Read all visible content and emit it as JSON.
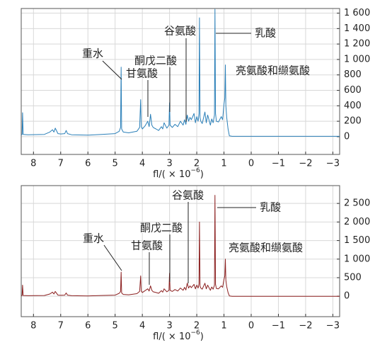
{
  "chart_data": [
    {
      "type": "line",
      "color": "#2a7fb8",
      "x": [
        8.45,
        8.42,
        8.4,
        8.38,
        8.2,
        7.6,
        7.4,
        7.3,
        7.25,
        7.2,
        7.1,
        7.0,
        6.85,
        6.8,
        6.75,
        6.6,
        6.0,
        5.5,
        5.0,
        4.85,
        4.8,
        4.78,
        4.76,
        4.7,
        4.5,
        4.2,
        4.1,
        4.06,
        4.04,
        4.0,
        3.9,
        3.8,
        3.75,
        3.7,
        3.65,
        3.6,
        3.5,
        3.4,
        3.3,
        3.25,
        3.2,
        3.1,
        3.02,
        3.0,
        2.98,
        2.9,
        2.8,
        2.7,
        2.6,
        2.5,
        2.45,
        2.4,
        2.35,
        2.3,
        2.25,
        2.2,
        2.1,
        2.05,
        2.0,
        1.95,
        1.92,
        1.9,
        1.88,
        1.85,
        1.8,
        1.7,
        1.65,
        1.6,
        1.5,
        1.45,
        1.4,
        1.35,
        1.33,
        1.31,
        1.28,
        1.2,
        1.1,
        1.05,
        1.0,
        0.97,
        0.95,
        0.93,
        0.9,
        0.85,
        0.8,
        0.7,
        0.5,
        0,
        -1,
        -2,
        -3.25
      ],
      "values": [
        20,
        30,
        310,
        30,
        25,
        30,
        60,
        90,
        60,
        110,
        40,
        35,
        40,
        80,
        40,
        25,
        20,
        30,
        40,
        70,
        120,
        900,
        100,
        60,
        50,
        70,
        120,
        480,
        130,
        100,
        140,
        200,
        130,
        290,
        150,
        120,
        100,
        80,
        130,
        100,
        180,
        110,
        150,
        440,
        150,
        120,
        160,
        130,
        200,
        150,
        220,
        160,
        280,
        200,
        250,
        220,
        300,
        180,
        260,
        200,
        300,
        1540,
        250,
        200,
        170,
        320,
        180,
        280,
        150,
        230,
        180,
        280,
        1650,
        300,
        200,
        190,
        260,
        220,
        420,
        500,
        930,
        400,
        250,
        100,
        10,
        5,
        5,
        5,
        5,
        5,
        5
      ],
      "xlim": [
        8.45,
        -3.25
      ],
      "xticks": [
        8,
        7,
        6,
        5,
        4,
        3,
        2,
        1,
        0,
        {
          "value": -1,
          "label": "−1"
        },
        {
          "value": -2,
          "label": "−2"
        },
        {
          "value": -3,
          "label": "−3"
        }
      ],
      "ylim": [
        -230,
        1660
      ],
      "yticks": [
        0,
        200,
        400,
        600,
        800,
        {
          "value": 1000,
          "label": "1 000"
        },
        {
          "value": 1200,
          "label": "1 200"
        },
        {
          "value": 1400,
          "label": "1 400"
        },
        {
          "value": 1600,
          "label": "1 600"
        }
      ],
      "grid": true,
      "x_label": [
        "fl/( × 10",
        "−6",
        ")"
      ],
      "annotations": [
        "重水",
        "甘氨酸",
        "酮戊二酸",
        "谷氨酸",
        "乳酸",
        "亮氨酸和缬氨酸"
      ]
    },
    {
      "type": "line",
      "color": "#8b1f1f",
      "x": [
        8.45,
        8.42,
        8.4,
        8.38,
        8.2,
        7.6,
        7.4,
        7.3,
        7.25,
        7.2,
        7.1,
        7.0,
        6.85,
        6.8,
        6.75,
        6.6,
        6.0,
        5.5,
        5.0,
        4.85,
        4.8,
        4.78,
        4.76,
        4.7,
        4.5,
        4.2,
        4.1,
        4.06,
        4.04,
        4.0,
        3.9,
        3.8,
        3.75,
        3.7,
        3.65,
        3.6,
        3.5,
        3.4,
        3.3,
        3.25,
        3.2,
        3.1,
        3.02,
        3.0,
        2.98,
        2.9,
        2.8,
        2.7,
        2.6,
        2.5,
        2.45,
        2.4,
        2.35,
        2.3,
        2.25,
        2.2,
        2.1,
        2.05,
        2.0,
        1.95,
        1.92,
        1.9,
        1.88,
        1.85,
        1.8,
        1.7,
        1.65,
        1.6,
        1.5,
        1.45,
        1.4,
        1.35,
        1.33,
        1.31,
        1.28,
        1.2,
        1.1,
        1.05,
        1.0,
        0.97,
        0.95,
        0.93,
        0.9,
        0.85,
        0.8,
        0.7,
        0.5,
        0,
        -1,
        -2,
        -3.25
      ],
      "values": [
        10,
        20,
        300,
        20,
        15,
        20,
        60,
        110,
        60,
        130,
        30,
        25,
        30,
        90,
        30,
        15,
        10,
        20,
        30,
        80,
        130,
        650,
        90,
        50,
        40,
        70,
        130,
        550,
        140,
        100,
        150,
        200,
        140,
        280,
        160,
        120,
        100,
        80,
        150,
        110,
        200,
        120,
        160,
        620,
        160,
        130,
        180,
        140,
        220,
        160,
        240,
        170,
        350,
        220,
        280,
        230,
        320,
        200,
        300,
        220,
        330,
        2000,
        270,
        220,
        190,
        350,
        200,
        300,
        160,
        250,
        190,
        300,
        2720,
        320,
        210,
        200,
        280,
        240,
        450,
        550,
        1000,
        430,
        260,
        100,
        10,
        0,
        0,
        0,
        0,
        0,
        0
      ],
      "xlim": [
        8.45,
        -3.25
      ],
      "xticks": [
        8,
        7,
        6,
        5,
        4,
        3,
        2,
        1,
        0,
        {
          "value": -1,
          "label": "−1"
        },
        {
          "value": -2,
          "label": "−2"
        },
        {
          "value": -3,
          "label": "−3"
        }
      ],
      "ylim": [
        -550,
        2980
      ],
      "yticks": [
        0,
        500,
        {
          "value": 1000,
          "label": "1 000"
        },
        {
          "value": 1500,
          "label": "1 500"
        },
        {
          "value": 2000,
          "label": "2 000"
        },
        {
          "value": 2500,
          "label": "2 500"
        }
      ],
      "grid": true,
      "x_label": [
        "fl/( × 10",
        "−6",
        ")"
      ],
      "annotations": [
        "重水",
        "甘氨酸",
        "酮戊二酸",
        "谷氨酸",
        "乳酸",
        "亮氨酸和缬氨酸"
      ]
    }
  ]
}
